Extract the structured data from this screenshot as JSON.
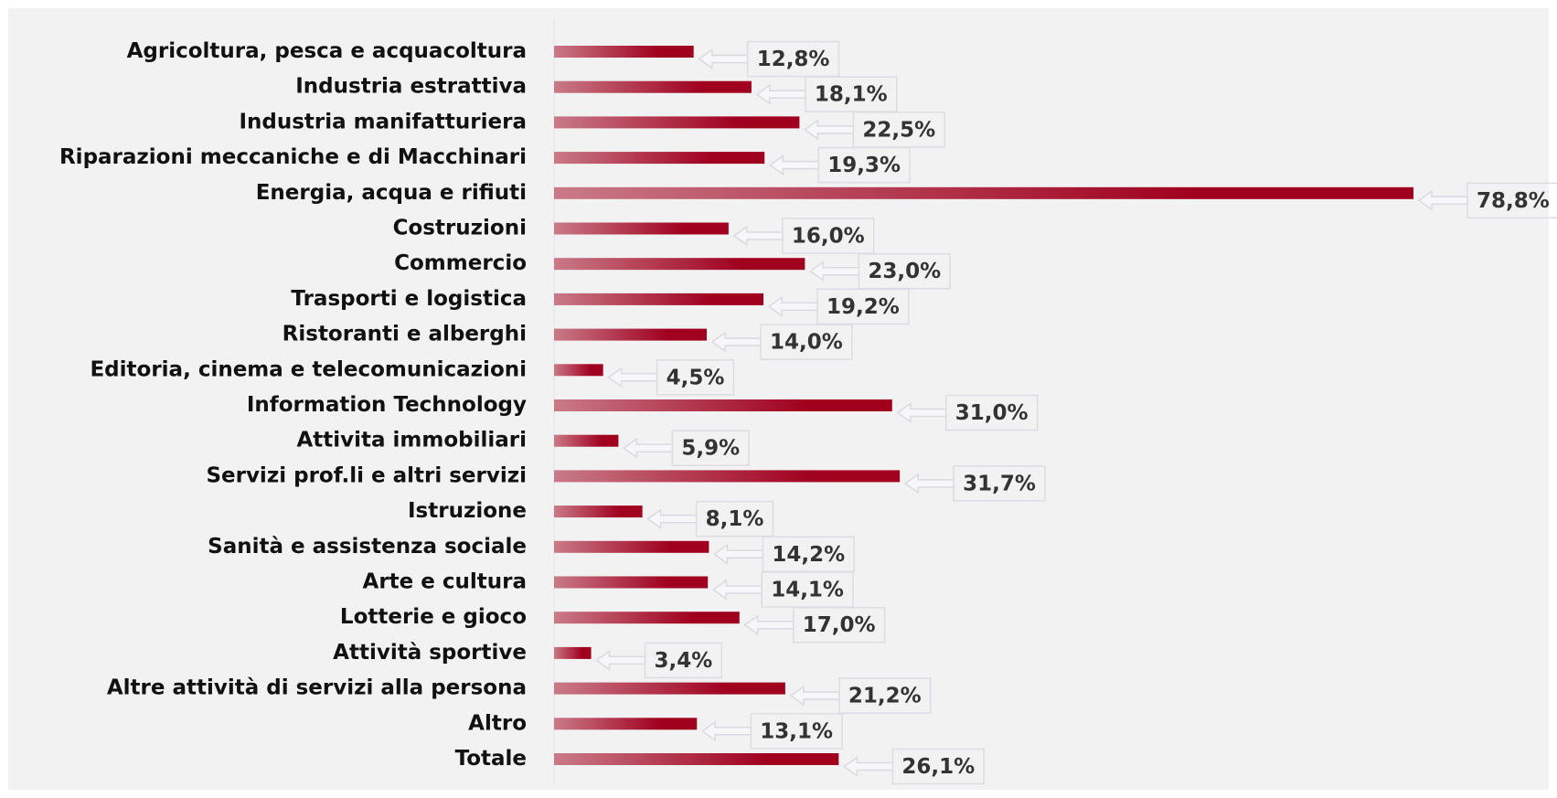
{
  "chart_data": {
    "type": "bar",
    "orientation": "horizontal",
    "categories": [
      "Agricoltura, pesca e acquacoltura",
      "Industria estrattiva",
      "Industria manifatturiera",
      "Riparazioni meccaniche e di Macchinari",
      "Energia, acqua e rifiuti",
      "Costruzioni",
      "Commercio",
      "Trasporti e logistica",
      "Ristoranti e alberghi",
      "Editoria, cinema e telecomunicazioni",
      "Information Technology",
      "Attivita immobiliari",
      "Servizi prof.li e altri servizi",
      "Istruzione",
      "Sanità e assistenza sociale",
      "Arte e cultura",
      "Lotterie e gioco",
      "Attività sportive",
      "Altre attività di servizi alla persona",
      "Altro",
      "Totale"
    ],
    "values": [
      12.8,
      18.1,
      22.5,
      19.3,
      78.8,
      16.0,
      23.0,
      19.2,
      14.0,
      4.5,
      31.0,
      5.9,
      31.7,
      8.1,
      14.2,
      14.1,
      17.0,
      3.4,
      21.2,
      13.1,
      26.1
    ],
    "value_labels": [
      "12,8%",
      "18,1%",
      "22,5%",
      "19,3%",
      "78,8%",
      "16,0%",
      "23,0%",
      "19,2%",
      "14,0%",
      "4,5%",
      "31,0%",
      "5,9%",
      "31,7%",
      "8,1%",
      "14,2%",
      "14,1%",
      "17,0%",
      "3,4%",
      "21,2%",
      "13,1%",
      "26,1%"
    ],
    "color": "#a0001e",
    "color_start": "#c97a88"
  }
}
